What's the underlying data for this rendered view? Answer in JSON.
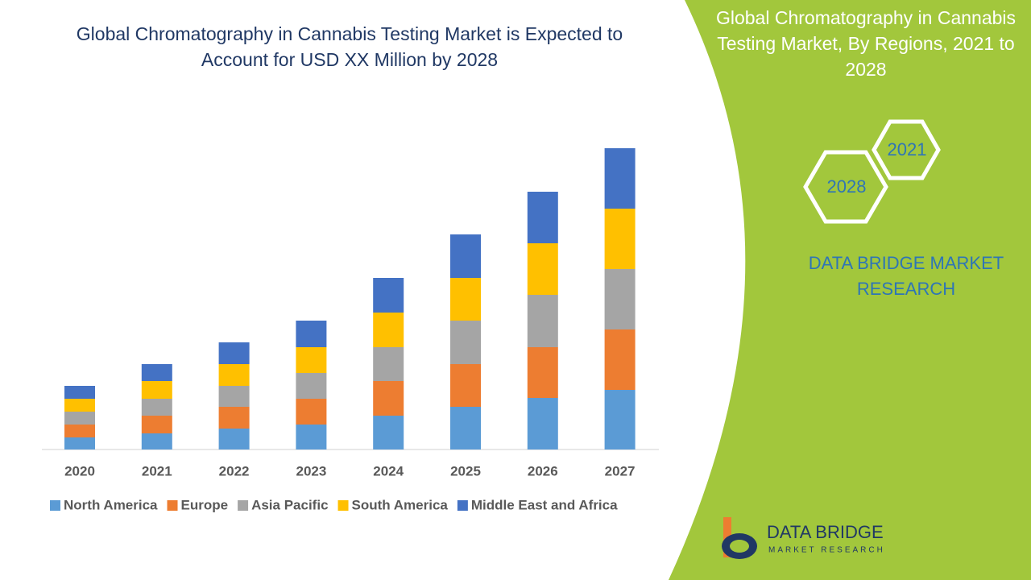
{
  "chart_data": {
    "type": "stacked-bar",
    "title": "Global Chromatography in Cannabis Testing Market is Expected to Account for USD XX Million by 2028",
    "categories": [
      "2020",
      "2021",
      "2022",
      "2023",
      "2024",
      "2025",
      "2026",
      "2027"
    ],
    "series": [
      {
        "name": "North America",
        "color": "#5b9bd5",
        "values": [
          15,
          20,
          26,
          31,
          42,
          53,
          64,
          74
        ]
      },
      {
        "name": "Europe",
        "color": "#ed7d31",
        "values": [
          16,
          22,
          27,
          32,
          43,
          53,
          63,
          75
        ]
      },
      {
        "name": "Asia Pacific",
        "color": "#a5a5a5",
        "values": [
          16,
          21,
          26,
          32,
          42,
          54,
          65,
          75
        ]
      },
      {
        "name": "South America",
        "color": "#ffc000",
        "values": [
          16,
          22,
          27,
          32,
          43,
          53,
          64,
          75
        ]
      },
      {
        "name": "Middle East and Africa",
        "color": "#4472c4",
        "values": [
          16,
          21,
          27,
          33,
          43,
          54,
          64,
          75
        ]
      }
    ]
  },
  "side_panel": {
    "title": "Global Chromatography in Cannabis Testing Market, By Regions, 2021 to 2028",
    "hexagons": [
      "2021",
      "2028"
    ],
    "brand": "DATA BRIDGE MARKET RESEARCH"
  },
  "logo": {
    "name": "DATA BRIDGE",
    "tagline": "MARKET RESEARCH"
  }
}
